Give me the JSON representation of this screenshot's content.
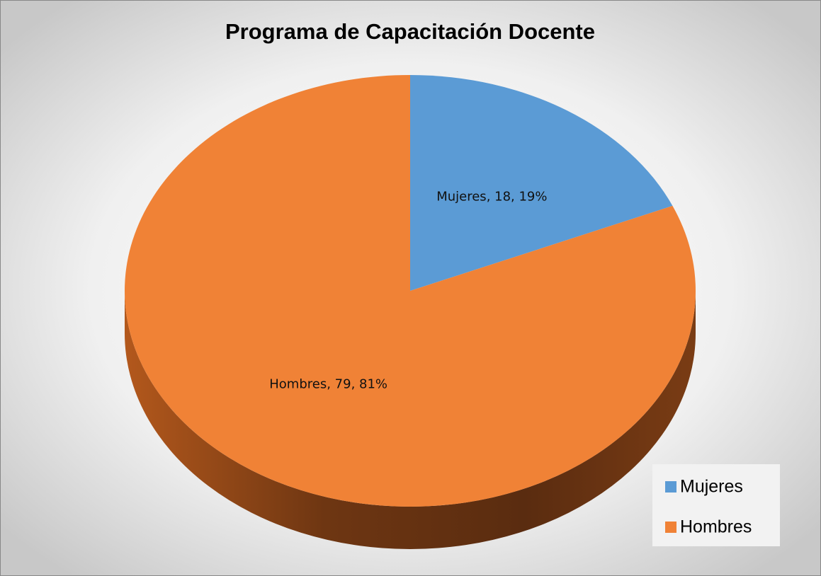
{
  "chart_data": {
    "type": "pie",
    "title": "Programa de Capacitación Docente",
    "categories": [
      "Mujeres",
      "Hombres"
    ],
    "values": [
      18,
      79
    ],
    "value_labels": [
      "Mujeres, 18, 19%",
      "Hombres, 79, 81%"
    ],
    "colors": [
      "#5b9bd5",
      "#f08236"
    ],
    "legend": "bottom-right"
  }
}
